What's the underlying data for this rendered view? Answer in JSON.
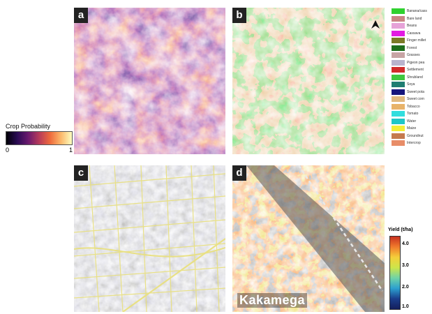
{
  "panels": {
    "a": {
      "label": "a"
    },
    "b": {
      "label": "b"
    },
    "c": {
      "label": "c"
    },
    "d": {
      "label": "d"
    }
  },
  "crop_probability": {
    "title": "Crop Probability",
    "min_label": "0",
    "max_label": "1"
  },
  "landcover_legend": [
    {
      "label": "Banana/cass",
      "color": "#2fd12f"
    },
    {
      "label": "Bare land",
      "color": "#c98585"
    },
    {
      "label": "Beans",
      "color": "#e6a2d8"
    },
    {
      "label": "Cassava",
      "color": "#e21be2"
    },
    {
      "label": "Finger millet",
      "color": "#7a7a27"
    },
    {
      "label": "Forest",
      "color": "#1e6e1e"
    },
    {
      "label": "Grasses",
      "color": "#c7a4a4"
    },
    {
      "label": "Pigeon pea",
      "color": "#b9b3cd"
    },
    {
      "label": "Settlement",
      "color": "#d12b2b"
    },
    {
      "label": "Shrubland",
      "color": "#3fc73f"
    },
    {
      "label": "Soya",
      "color": "#1f7d71"
    },
    {
      "label": "Sweet pota",
      "color": "#16167c"
    },
    {
      "label": "Sweet corn",
      "color": "#e1b97f"
    },
    {
      "label": "Tobacco",
      "color": "#e8b36a"
    },
    {
      "label": "Tomato",
      "color": "#31dede"
    },
    {
      "label": "Water",
      "color": "#1fc7c7"
    },
    {
      "label": "Maize",
      "color": "#f3ee37"
    },
    {
      "label": "Groundnut",
      "color": "#c57a4e"
    },
    {
      "label": "Intercrop",
      "color": "#e88d68"
    }
  ],
  "yield_legend": {
    "title": "Yield (t/ha)",
    "ticks": [
      "4.0",
      "3.0",
      "2.0",
      "1.0"
    ]
  },
  "place_label": "Kakamega"
}
